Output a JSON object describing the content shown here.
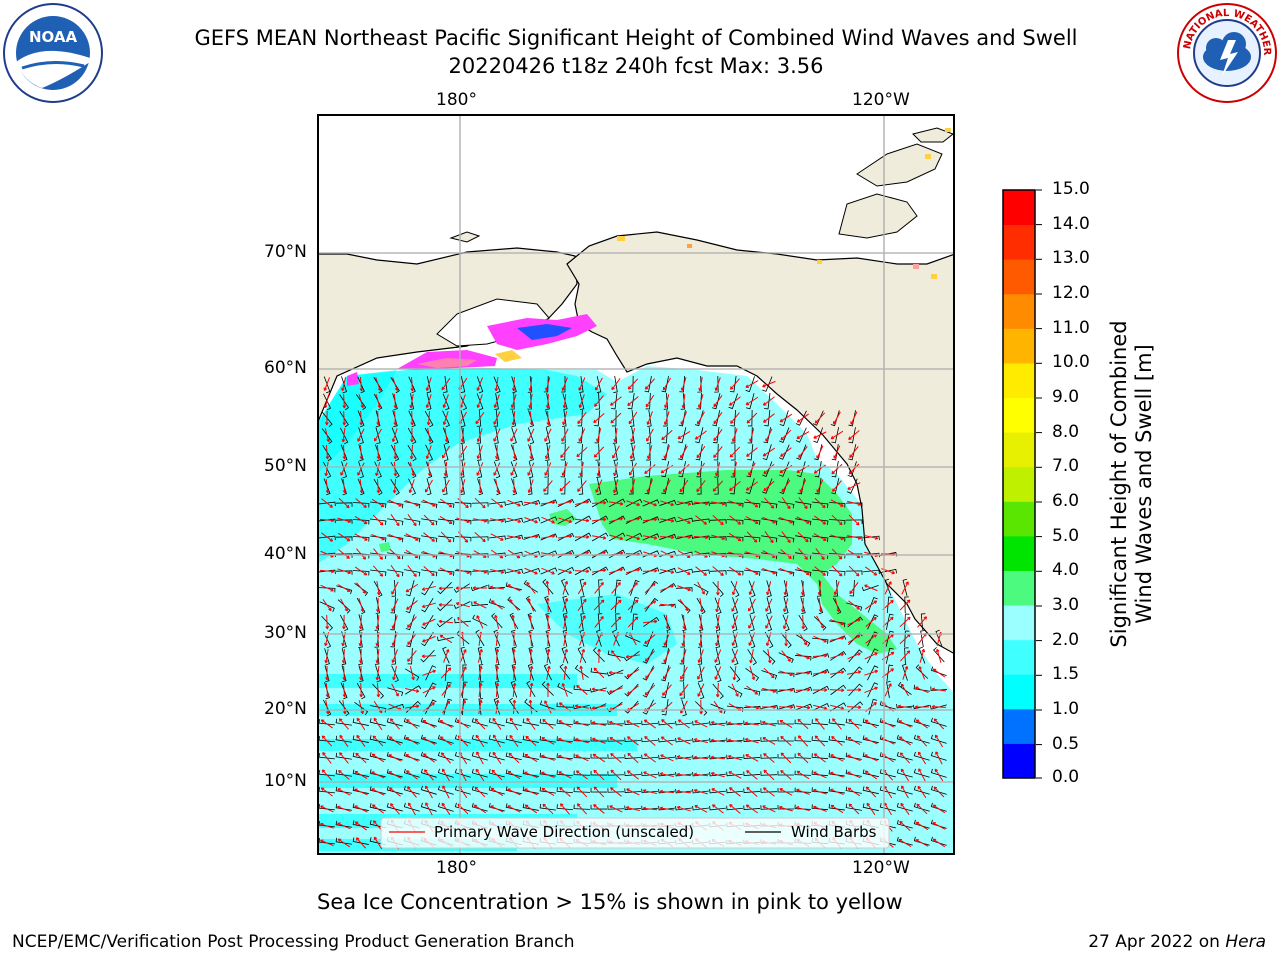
{
  "header": {
    "title_line1": "GEFS MEAN Northeast Pacific Significant Height of Combined Wind Waves and Swell",
    "title_line2": "20220426 t18z 240h fcst   Max: 3.56"
  },
  "logos": {
    "left": {
      "name": "noaa-logo",
      "text": "NOAA",
      "ring_text": "NATIONAL OCEANIC AND ATMOSPHERIC ADMINISTRATION · U.S. DEPARTMENT OF COMMERCE"
    },
    "right": {
      "name": "nws-logo",
      "ring_text": "NATIONAL WEATHER SERVICE"
    }
  },
  "map": {
    "lon_labels_top": [
      "180°",
      "120°W"
    ],
    "lon_labels_bottom": [
      "180°",
      "120°W"
    ],
    "lat_labels": [
      "70°N",
      "60°N",
      "50°N",
      "40°N",
      "30°N",
      "20°N",
      "10°N"
    ],
    "legend": {
      "wave_direction": "Primary Wave Direction (unscaled)",
      "wind_barbs": "Wind Barbs"
    },
    "colors": {
      "land": "#efecdc",
      "wave_arrow": "#ff0000",
      "barb": "#000000",
      "grid": "#b0b0b0"
    }
  },
  "colorbar": {
    "label_line1": "Significant Height of Combined",
    "label_line2": "Wind Waves and Swell [m]",
    "ticks": [
      "15.0",
      "14.0",
      "13.0",
      "12.0",
      "11.0",
      "10.0",
      "9.0",
      "8.0",
      "7.0",
      "6.0",
      "5.0",
      "4.0",
      "3.0",
      "2.0",
      "1.5",
      "1.0",
      "0.5",
      "0.0"
    ],
    "colors_bottom_to_top": [
      "#0000ff",
      "#0072ff",
      "#00ffff",
      "#40ffff",
      "#9bffff",
      "#4dfa80",
      "#00e500",
      "#5ae600",
      "#bef000",
      "#e6f000",
      "#ffff00",
      "#ffeb00",
      "#ffb400",
      "#ff8c00",
      "#ff5a00",
      "#ff2d00",
      "#ff0000"
    ]
  },
  "notes": {
    "sea_ice": "Sea Ice Concentration > 15% is shown in pink to yellow"
  },
  "footer": {
    "left": "NCEP/EMC/Verification Post Processing Product Generation Branch",
    "right_date": "27 Apr 2022 on ",
    "right_host": "Hera"
  }
}
